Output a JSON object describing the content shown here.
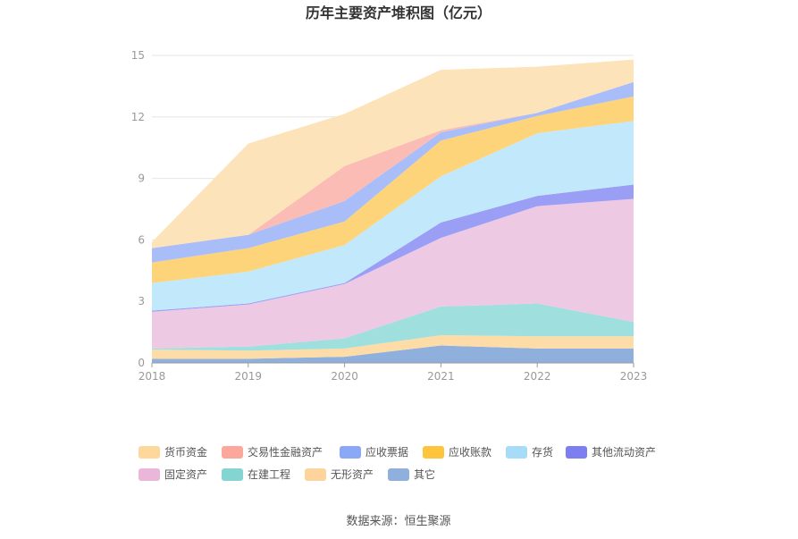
{
  "chart_data": {
    "type": "area",
    "stacked": true,
    "title": "历年主要资产堆积图（亿元）",
    "xlabel": "",
    "ylabel": "",
    "categories": [
      "2018",
      "2019",
      "2020",
      "2021",
      "2022",
      "2023"
    ],
    "ylim": [
      0,
      15
    ],
    "yticks": [
      "0",
      "3",
      "6",
      "9",
      "12",
      "15"
    ],
    "grid": true,
    "legend_position": "bottom",
    "series": [
      {
        "name": "其它",
        "color": "#8fb0dc",
        "values": [
          0.2,
          0.2,
          0.3,
          0.85,
          0.7,
          0.7
        ]
      },
      {
        "name": "无形资产",
        "color": "#fddca7",
        "values": [
          0.45,
          0.4,
          0.4,
          0.5,
          0.6,
          0.6
        ]
      },
      {
        "name": "在建工程",
        "color": "#9fe0de",
        "values": [
          0.05,
          0.2,
          0.5,
          1.4,
          1.6,
          0.7
        ]
      },
      {
        "name": "固定资产",
        "color": "#edc9e4",
        "values": [
          1.8,
          2.05,
          2.65,
          3.35,
          4.75,
          6.0
        ]
      },
      {
        "name": "其他流动资产",
        "color": "#9b9ef5",
        "values": [
          0.05,
          0.05,
          0.05,
          0.75,
          0.5,
          0.7
        ]
      },
      {
        "name": "存货",
        "color": "#c2e8fb",
        "values": [
          1.35,
          1.55,
          1.85,
          2.25,
          3.05,
          3.1
        ]
      },
      {
        "name": "应收账款",
        "color": "#fed47a",
        "values": [
          1.0,
          1.15,
          1.15,
          1.75,
          0.85,
          1.2
        ]
      },
      {
        "name": "应收票据",
        "color": "#a9bdf8",
        "values": [
          0.7,
          0.65,
          1.0,
          0.4,
          0.15,
          0.7
        ]
      },
      {
        "name": "交易性金融资产",
        "color": "#fbbcb6",
        "values": [
          0.0,
          0.0,
          1.7,
          0.1,
          0.0,
          0.0
        ]
      },
      {
        "name": "货币资金",
        "color": "#fde3b9",
        "values": [
          0.3,
          4.45,
          2.55,
          2.95,
          2.25,
          1.1
        ]
      }
    ],
    "legend": [
      {
        "name": "货币资金",
        "color": "#fdd89a"
      },
      {
        "name": "交易性金融资产",
        "color": "#fba79c"
      },
      {
        "name": "应收票据",
        "color": "#8aa8f6"
      },
      {
        "name": "应收账款",
        "color": "#fec43c"
      },
      {
        "name": "存货",
        "color": "#a7dcf8"
      },
      {
        "name": "其他流动资产",
        "color": "#7d7ff0"
      },
      {
        "name": "固定资产",
        "color": "#eab7d9"
      },
      {
        "name": "在建工程",
        "color": "#84d4d2"
      },
      {
        "name": "无形资产",
        "color": "#fdd49c"
      },
      {
        "name": "其它",
        "color": "#8fb0dc"
      }
    ]
  },
  "source_text": "数据来源：恒生聚源"
}
